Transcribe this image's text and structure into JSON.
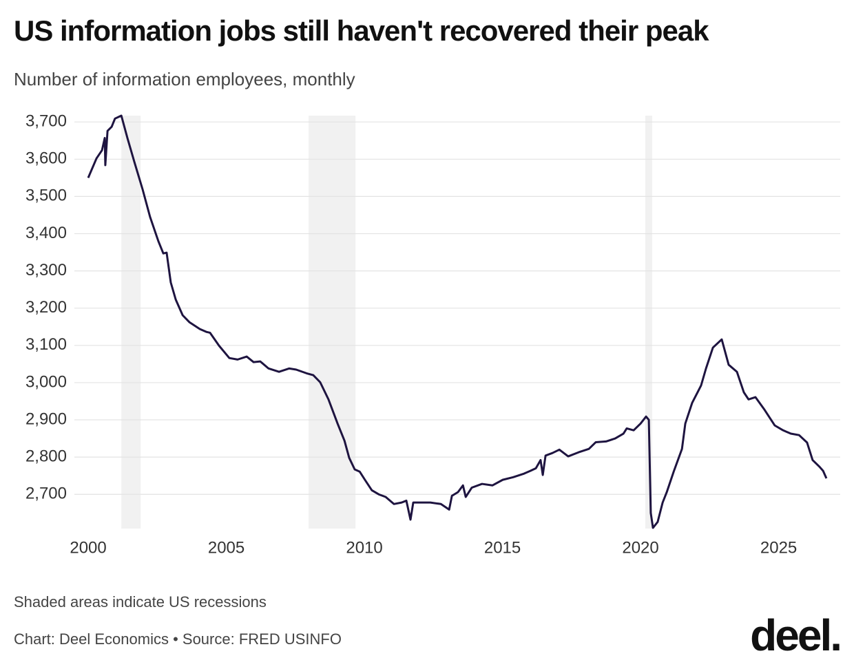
{
  "chart_data": {
    "type": "line",
    "title": "US information jobs still haven't recovered their peak",
    "subtitle": "Number of information employees, monthly",
    "note": "Shaded areas indicate US recessions",
    "source": "Chart: Deel Economics • Source: FRED USINFO",
    "logo": "deel.",
    "recessions": [
      [
        2001.2,
        2001.9
      ],
      [
        2007.98,
        2009.68
      ],
      [
        2020.17,
        2020.42
      ]
    ],
    "recession_color": "#f1f1f1",
    "xlim": [
      1999.5,
      2027.23
    ],
    "xticks": [
      2000,
      2005,
      2010,
      2015,
      2020,
      2025
    ],
    "ylim": [
      2608,
      3717
    ],
    "yticks": [
      {
        "value": 2700,
        "label": "2,700"
      },
      {
        "value": 2800,
        "label": "2,800"
      },
      {
        "value": 2900,
        "label": "2,900"
      },
      {
        "value": 3000,
        "label": "3,000"
      },
      {
        "value": 3100,
        "label": "3,100"
      },
      {
        "value": 3200,
        "label": "3,200"
      },
      {
        "value": 3300,
        "label": "3,300"
      },
      {
        "value": 3400,
        "label": "3,400"
      },
      {
        "value": 3500,
        "label": "3,500"
      },
      {
        "value": 3600,
        "label": "3,600"
      },
      {
        "value": 3700,
        "label": "3,700"
      }
    ],
    "grid": true,
    "x": [
      2000.0,
      2000.3,
      2000.5,
      2000.6,
      2000.62,
      2000.7,
      2000.85,
      2000.97,
      2001.2,
      2001.42,
      2001.67,
      2001.97,
      2002.24,
      2002.54,
      2002.72,
      2002.84,
      2002.99,
      2003.17,
      2003.42,
      2003.67,
      2004.04,
      2004.29,
      2004.41,
      2004.74,
      2005.11,
      2005.41,
      2005.74,
      2005.99,
      2006.23,
      2006.53,
      2006.91,
      2007.28,
      2007.53,
      2007.91,
      2008.15,
      2008.4,
      2008.7,
      2009.03,
      2009.28,
      2009.45,
      2009.65,
      2009.83,
      2010.02,
      2010.27,
      2010.52,
      2010.77,
      2011.07,
      2011.35,
      2011.52,
      2011.67,
      2011.77,
      2012.02,
      2012.39,
      2012.77,
      2013.07,
      2013.17,
      2013.39,
      2013.57,
      2013.67,
      2013.89,
      2014.26,
      2014.64,
      2015.01,
      2015.39,
      2015.76,
      2016.01,
      2016.21,
      2016.38,
      2016.46,
      2016.56,
      2016.81,
      2017.06,
      2017.38,
      2017.76,
      2018.13,
      2018.38,
      2018.75,
      2019.08,
      2019.38,
      2019.5,
      2019.75,
      2020.0,
      2020.2,
      2020.3,
      2020.37,
      2020.45,
      2020.62,
      2020.8,
      2020.95,
      2021.2,
      2021.5,
      2021.62,
      2021.87,
      2022.19,
      2022.37,
      2022.62,
      2022.94,
      2023.19,
      2023.49,
      2023.74,
      2023.91,
      2024.16,
      2024.49,
      2024.86,
      2025.16,
      2025.44,
      2025.74,
      2026.03,
      2026.23,
      2026.48,
      2026.61,
      2026.73
    ],
    "series": [
      {
        "color": "#1e1440",
        "values": [
          3550,
          3602,
          3624,
          3657,
          3584,
          3676,
          3687,
          3709,
          3717,
          3657,
          3593,
          3519,
          3445,
          3380,
          3347,
          3349,
          3269,
          3223,
          3181,
          3162,
          3144,
          3136,
          3134,
          3099,
          3066,
          3062,
          3070,
          3055,
          3057,
          3038,
          3029,
          3038,
          3035,
          3025,
          3020,
          3001,
          2955,
          2890,
          2844,
          2798,
          2767,
          2761,
          2739,
          2711,
          2700,
          2693,
          2674,
          2678,
          2683,
          2632,
          2678,
          2678,
          2678,
          2674,
          2659,
          2696,
          2706,
          2724,
          2693,
          2718,
          2728,
          2724,
          2739,
          2746,
          2755,
          2763,
          2770,
          2792,
          2752,
          2804,
          2811,
          2820,
          2802,
          2813,
          2822,
          2840,
          2842,
          2850,
          2863,
          2877,
          2872,
          2890,
          2909,
          2900,
          2650,
          2610,
          2626,
          2678,
          2706,
          2761,
          2822,
          2890,
          2946,
          2992,
          3038,
          3094,
          3116,
          3048,
          3029,
          2974,
          2955,
          2961,
          2927,
          2885,
          2872,
          2863,
          2859,
          2839,
          2792,
          2774,
          2763,
          2743
        ]
      }
    ]
  }
}
